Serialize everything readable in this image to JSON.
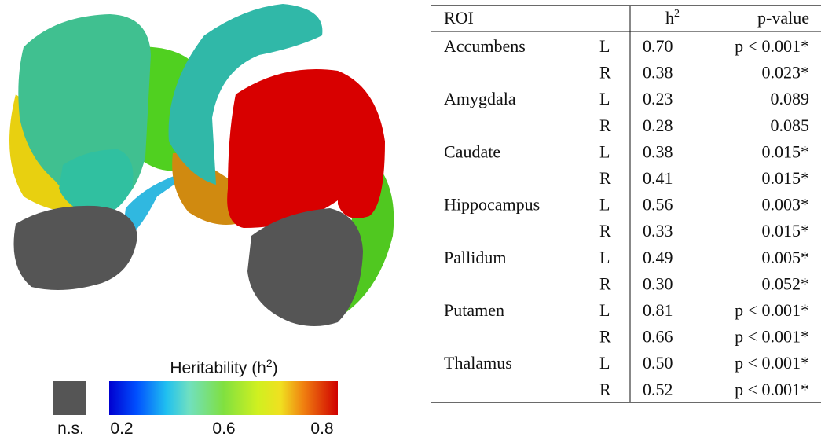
{
  "colorbar": {
    "title": {
      "before": "Heritability (h",
      "sup": "2",
      "after": ")"
    },
    "ns_label": "n.s.",
    "tick_labels": [
      "0.2",
      "0.6",
      "0.8"
    ]
  },
  "table": {
    "header": {
      "roi": "ROI",
      "h2": {
        "base": "h",
        "sup": "2"
      },
      "p": "p-value"
    },
    "rows": [
      {
        "roi": "Accumbens",
        "side": "L",
        "h2": "0.70",
        "p": "p < 0.001*"
      },
      {
        "side": "R",
        "h2": "0.38",
        "p": "0.023*"
      },
      {
        "roi": "Amygdala",
        "side": "L",
        "h2": "0.23",
        "p": "0.089"
      },
      {
        "side": "R",
        "h2": "0.28",
        "p": "0.085"
      },
      {
        "roi": "Caudate",
        "side": "L",
        "h2": "0.38",
        "p": "0.015*"
      },
      {
        "side": "R",
        "h2": "0.41",
        "p": "0.015*"
      },
      {
        "roi": "Hippocampus",
        "side": "L",
        "h2": "0.56",
        "p": "0.003*"
      },
      {
        "side": "R",
        "h2": "0.33",
        "p": "0.015*"
      },
      {
        "roi": "Pallidum",
        "side": "L",
        "h2": "0.49",
        "p": "0.005*"
      },
      {
        "side": "R",
        "h2": "0.30",
        "p": "0.052*"
      },
      {
        "roi": "Putamen",
        "side": "L",
        "h2": "0.81",
        "p": "p < 0.001*"
      },
      {
        "side": "R",
        "h2": "0.66",
        "p": "p < 0.001*"
      },
      {
        "roi": "Thalamus",
        "side": "L",
        "h2": "0.50",
        "p": "p < 0.001*"
      },
      {
        "side": "R",
        "h2": "0.52",
        "p": "p < 0.001*"
      }
    ]
  }
}
